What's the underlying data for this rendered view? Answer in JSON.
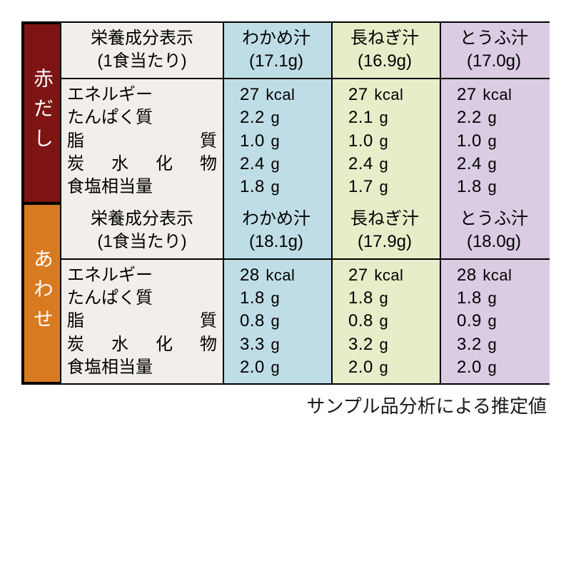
{
  "colors": {
    "cat1_bg": "#7e1414",
    "cat2_bg": "#d87a1f",
    "label_bg": "#f2efea",
    "col1_bg": "#bfdde6",
    "col2_bg": "#e8ecc8",
    "col3_bg": "#d9cce3",
    "border": "#000000",
    "text": "#1a1a1a"
  },
  "header_label_line1": "栄養成分表示",
  "header_label_line2": "(1食当たり)",
  "nutrients": [
    {
      "jp": "エネルギー",
      "spread": false
    },
    {
      "jp": "たんぱく質",
      "spread": false
    },
    {
      "jp": "脂質",
      "spread": true,
      "parts": [
        "脂",
        "質"
      ]
    },
    {
      "jp": "炭水化物",
      "spread": true,
      "parts": [
        "炭",
        "水",
        "化",
        "物"
      ]
    },
    {
      "jp": "食塩相当量",
      "spread": false
    }
  ],
  "sections": [
    {
      "category": "赤だし",
      "cat_bg_key": "cat1_bg",
      "columns": [
        {
          "name": "わかめ汁",
          "weight": "(17.1g)",
          "bg": "col1_bg",
          "vals": [
            {
              "n": "27",
              "u": "kcal"
            },
            {
              "n": "2.2",
              "u": "g"
            },
            {
              "n": "1.0",
              "u": "g"
            },
            {
              "n": "2.4",
              "u": "g"
            },
            {
              "n": "1.8",
              "u": "g"
            }
          ]
        },
        {
          "name": "長ねぎ汁",
          "weight": "(16.9g)",
          "bg": "col2_bg",
          "vals": [
            {
              "n": "27",
              "u": "kcal"
            },
            {
              "n": "2.1",
              "u": "g"
            },
            {
              "n": "1.0",
              "u": "g"
            },
            {
              "n": "2.4",
              "u": "g"
            },
            {
              "n": "1.7",
              "u": "g"
            }
          ]
        },
        {
          "name": "とうふ汁",
          "weight": "(17.0g)",
          "bg": "col3_bg",
          "vals": [
            {
              "n": "27",
              "u": "kcal"
            },
            {
              "n": "2.2",
              "u": "g"
            },
            {
              "n": "1.0",
              "u": "g"
            },
            {
              "n": "2.4",
              "u": "g"
            },
            {
              "n": "1.8",
              "u": "g"
            }
          ]
        }
      ]
    },
    {
      "category": "あわせ",
      "cat_bg_key": "cat2_bg",
      "columns": [
        {
          "name": "わかめ汁",
          "weight": "(18.1g)",
          "bg": "col1_bg",
          "vals": [
            {
              "n": "28",
              "u": "kcal"
            },
            {
              "n": "1.8",
              "u": "g"
            },
            {
              "n": "0.8",
              "u": "g"
            },
            {
              "n": "3.3",
              "u": "g"
            },
            {
              "n": "2.0",
              "u": "g"
            }
          ]
        },
        {
          "name": "長ねぎ汁",
          "weight": "(17.9g)",
          "bg": "col2_bg",
          "vals": [
            {
              "n": "27",
              "u": "kcal"
            },
            {
              "n": "1.8",
              "u": "g"
            },
            {
              "n": "0.8",
              "u": "g"
            },
            {
              "n": "3.2",
              "u": "g"
            },
            {
              "n": "2.0",
              "u": "g"
            }
          ]
        },
        {
          "name": "とうふ汁",
          "weight": "(18.0g)",
          "bg": "col3_bg",
          "vals": [
            {
              "n": "28",
              "u": "kcal"
            },
            {
              "n": "1.8",
              "u": "g"
            },
            {
              "n": "0.9",
              "u": "g"
            },
            {
              "n": "3.2",
              "u": "g"
            },
            {
              "n": "2.0",
              "u": "g"
            }
          ]
        }
      ]
    }
  ],
  "footnote": "サンプル品分析による推定値"
}
